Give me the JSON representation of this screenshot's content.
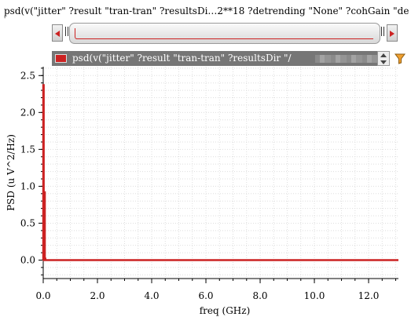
{
  "window": {
    "title": "psd(v(\"jitter\" ?result \"tran-tran\" ?resultsDi…2**18 ?detrending \"None\" ?cohGain \"default\"",
    "title_tick": "'"
  },
  "legend": {
    "label": "psd(v(\"jitter\" ?result \"tran-tran\" ?resultsDir \"/",
    "color": "#cc2222"
  },
  "icons": {
    "scroll_left": "left-arrow-icon",
    "scroll_right": "right-arrow-icon",
    "spin_up": "chevron-up-icon",
    "spin_down": "chevron-down-icon",
    "filter": "filter-icon"
  },
  "chart_data": {
    "type": "line",
    "title": "",
    "xlabel": "freq (GHz)",
    "ylabel": "PSD (u V^2/Hz)",
    "xlim": [
      0,
      13.1
    ],
    "ylim": [
      -0.25,
      2.62
    ],
    "x_ticks": [
      0.0,
      2.0,
      4.0,
      6.0,
      8.0,
      10.0,
      12.0
    ],
    "x_tick_labels": [
      "0.0",
      "2.0",
      "4.0",
      "6.0",
      "8.0",
      "10.0",
      "12.0"
    ],
    "y_ticks": [
      0.0,
      0.5,
      1.0,
      1.5,
      2.0,
      2.5
    ],
    "y_tick_labels": [
      "0.0",
      "0.5",
      "1.0",
      "1.5",
      "2.0",
      "2.5"
    ],
    "grid": true,
    "legend_position": "top",
    "series": [
      {
        "color": "#cc2222",
        "x": [
          0.0,
          0.0,
          0.02,
          0.02,
          0.04,
          0.04,
          0.06,
          0.06,
          0.08,
          0.08,
          1.0,
          4.0,
          8.0,
          13.1
        ],
        "y": [
          0.0,
          2.37,
          2.37,
          0.0,
          0.0,
          0.92,
          0.92,
          0.02,
          0.02,
          0.0,
          0.0,
          0.0,
          0.0,
          0.0
        ]
      }
    ]
  }
}
